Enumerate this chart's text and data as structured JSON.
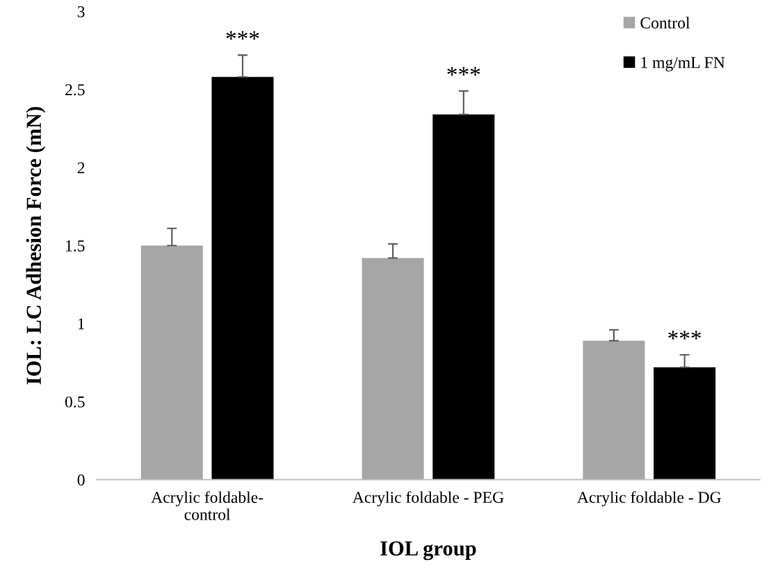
{
  "chart_data": {
    "type": "bar",
    "xlabel": "IOL group",
    "ylabel": "IOL: LC Adhesion Force (mN)",
    "categories": [
      "Acrylic foldable-\ncontrol",
      "Acrylic foldable - PEG",
      "Acrylic foldable - DG"
    ],
    "series": [
      {
        "name": "Control",
        "color": "#a6a6a6",
        "values": [
          1.5,
          1.42,
          0.89
        ],
        "errors": [
          0.11,
          0.09,
          0.07
        ]
      },
      {
        "name": "1 mg/mL FN",
        "color": "#000000",
        "values": [
          2.58,
          2.34,
          0.72
        ],
        "errors": [
          0.14,
          0.15,
          0.08
        ]
      }
    ],
    "annotations": [
      "***",
      "***",
      "***"
    ],
    "ylim": [
      0,
      3
    ],
    "yticks": [
      0,
      0.5,
      1,
      1.5,
      2,
      2.5,
      3
    ],
    "grid": false,
    "legend": "top right"
  }
}
